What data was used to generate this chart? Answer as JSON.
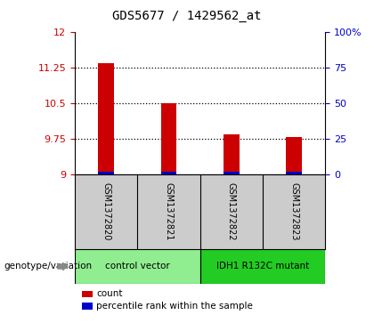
{
  "title": "GDS5677 / 1429562_at",
  "samples": [
    "GSM1372820",
    "GSM1372821",
    "GSM1372822",
    "GSM1372823"
  ],
  "red_values": [
    11.35,
    10.5,
    9.85,
    9.78
  ],
  "blue_values": [
    0.06,
    0.06,
    0.06,
    0.06
  ],
  "base_value": 9.0,
  "ylim": [
    9.0,
    12.0
  ],
  "yticks_left": [
    9,
    9.75,
    10.5,
    11.25,
    12
  ],
  "yticks_right": [
    0,
    25,
    50,
    75,
    100
  ],
  "ytick_labels_right": [
    "0",
    "25",
    "50",
    "75",
    "100%"
  ],
  "left_color": "#cc0000",
  "right_color": "#0000cc",
  "bar_width": 0.25,
  "groups": [
    {
      "label": "control vector",
      "samples": [
        0,
        1
      ],
      "color": "#90ee90"
    },
    {
      "label": "IDH1 R132C mutant",
      "samples": [
        2,
        3
      ],
      "color": "#22cc22"
    }
  ],
  "genotype_label": "genotype/variation",
  "legend_items": [
    {
      "color": "#cc0000",
      "label": "count"
    },
    {
      "color": "#0000cc",
      "label": "percentile rank within the sample"
    }
  ],
  "background_color": "#ffffff",
  "plot_bg_color": "#ffffff",
  "sample_box_color": "#cccccc",
  "title_fontsize": 10,
  "tick_fontsize": 8,
  "label_fontsize": 7.5
}
